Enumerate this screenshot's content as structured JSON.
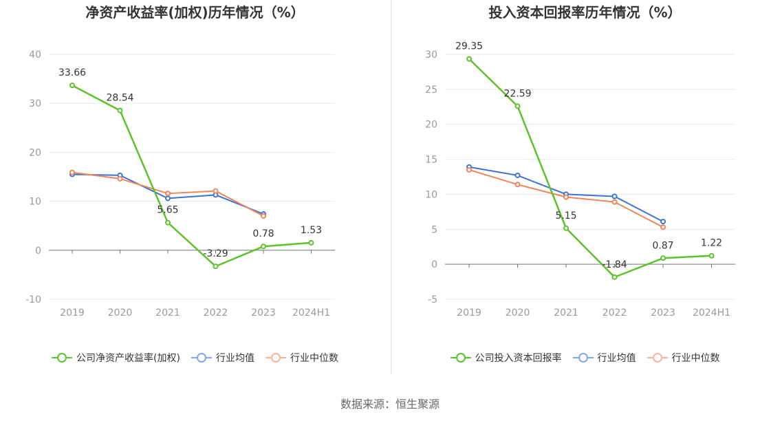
{
  "source": "数据来源：恒生聚源",
  "colors": {
    "company": "#5cc22c",
    "avg": "#3b72d8",
    "median": "#f0855a",
    "legend_avg": "#7fa6ee",
    "legend_median": "#f7b49a"
  },
  "chart_data": [
    {
      "type": "line",
      "title": "净资产收益率(加权)历年情况（%）",
      "categories": [
        "2019",
        "2020",
        "2021",
        "2022",
        "2023",
        "2024H1"
      ],
      "ylim": [
        -10,
        40
      ],
      "yticks": [
        -10,
        0,
        10,
        20,
        30,
        40
      ],
      "grid": true,
      "legend_position": "bottom",
      "series": [
        {
          "name": "公司净资产收益率(加权)",
          "values": [
            33.66,
            28.54,
            5.65,
            -3.29,
            0.78,
            1.53
          ],
          "labels": [
            "33.66",
            "28.54",
            "5.65",
            "-3.29",
            "0.78",
            "1.53"
          ]
        },
        {
          "name": "行业均值",
          "values": [
            15.5,
            15.3,
            10.6,
            11.3,
            7.4,
            null
          ]
        },
        {
          "name": "行业中位数",
          "values": [
            15.9,
            14.6,
            11.6,
            12.1,
            7.0,
            null
          ]
        }
      ]
    },
    {
      "type": "line",
      "title": "投入资本回报率历年情况（%）",
      "categories": [
        "2019",
        "2020",
        "2021",
        "2022",
        "2023",
        "2024H1"
      ],
      "ylim": [
        -5,
        30
      ],
      "yticks": [
        -5,
        0,
        5,
        10,
        15,
        20,
        25,
        30
      ],
      "grid": true,
      "legend_position": "bottom",
      "series": [
        {
          "name": "公司投入资本回报率",
          "values": [
            29.35,
            22.59,
            5.15,
            -1.84,
            0.87,
            1.22
          ],
          "labels": [
            "29.35",
            "22.59",
            "5.15",
            "-1.84",
            "0.87",
            "1.22"
          ]
        },
        {
          "name": "行业均值",
          "values": [
            13.9,
            12.7,
            10.0,
            9.7,
            6.1,
            null
          ]
        },
        {
          "name": "行业中位数",
          "values": [
            13.5,
            11.4,
            9.6,
            8.9,
            5.3,
            null
          ]
        }
      ]
    }
  ]
}
